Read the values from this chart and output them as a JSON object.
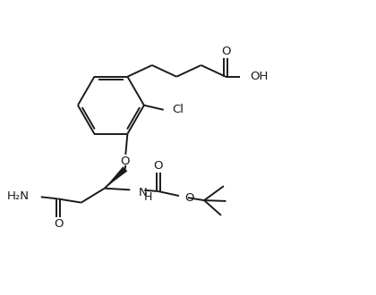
{
  "bg_color": "#ffffff",
  "line_color": "#1a1a1a",
  "line_width": 1.4,
  "font_size": 9.5,
  "figsize": [
    4.2,
    3.3
  ],
  "dpi": 100,
  "xlim": [
    0,
    10
  ],
  "ylim": [
    0,
    7.85
  ]
}
